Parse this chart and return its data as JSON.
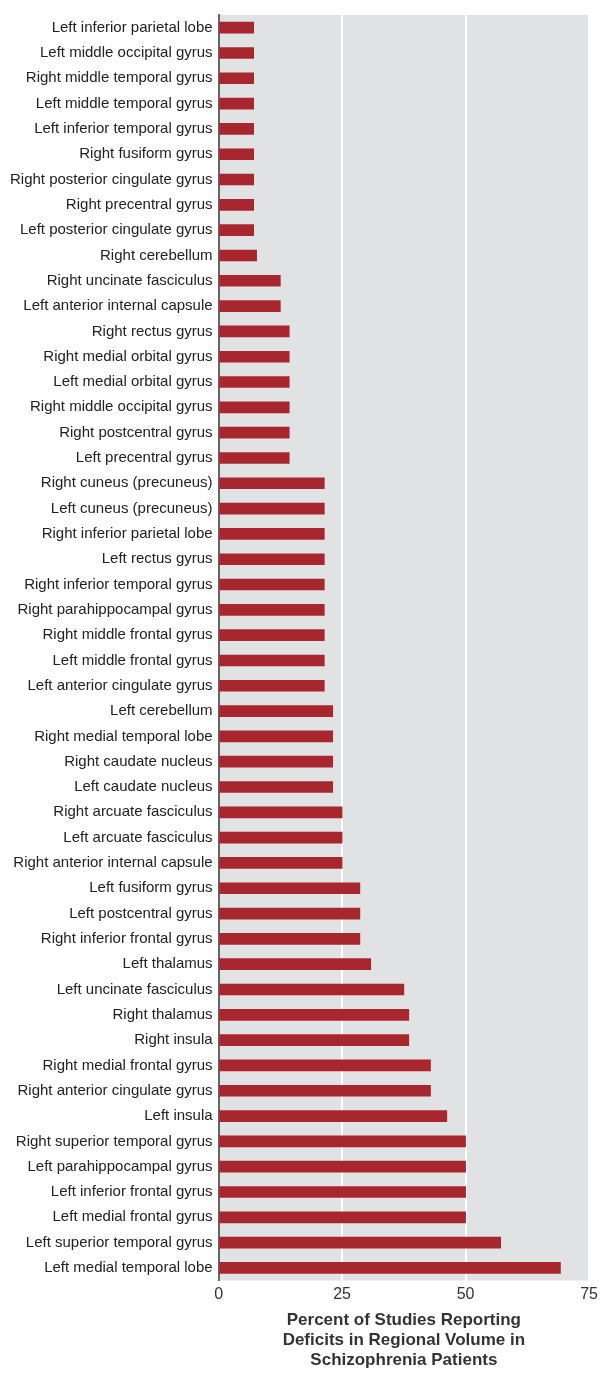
{
  "chart_data": {
    "type": "bar",
    "orientation": "horizontal",
    "xlabel": "Percent of Studies Reporting Deficits in Regional Volume in Schizophrenia Patients",
    "categories": [
      "Left inferior parietal lobe",
      "Left middle occipital gyrus",
      "Right middle temporal gyrus",
      "Left middle temporal gyrus",
      "Left inferior temporal gyrus",
      "Right fusiform gyrus",
      "Right posterior cingulate gyrus",
      "Right precentral gyrus",
      "Left posterior cingulate gyrus",
      "Right cerebellum",
      "Right uncinate fasciculus",
      "Left anterior internal capsule",
      "Right rectus gyrus",
      "Right medial orbital gyrus",
      "Left medial orbital gyrus",
      "Right middle occipital gyrus",
      "Right postcentral gyrus",
      "Left precentral gyrus",
      "Right cuneus (precuneus)",
      "Left cuneus (precuneus)",
      "Right inferior parietal lobe",
      "Left rectus gyrus",
      "Right inferior temporal gyrus",
      "Right parahippocampal gyrus",
      "Right middle frontal gyrus",
      "Left middle frontal gyrus",
      "Left anterior cingulate gyrus",
      "Left cerebellum",
      "Right medial temporal lobe",
      "Right caudate nucleus",
      "Left caudate nucleus",
      "Right arcuate fasciculus",
      "Left arcuate fasciculus",
      "Right anterior internal capsule",
      "Left fusiform gyrus",
      "Left postcentral gyrus",
      "Right inferior frontal gyrus",
      "Left thalamus",
      "Left uncinate fasciculus",
      "Right thalamus",
      "Right insula",
      "Right medial frontal gyrus",
      "Right anterior cingulate gyrus",
      "Left insula",
      "Right superior temporal gyrus",
      "Left parahippocampal gyrus",
      "Left inferior frontal gyrus",
      "Left medial frontal gyrus",
      "Left superior temporal gyrus",
      "Left medial temporal lobe"
    ],
    "values": [
      7.1,
      7.1,
      7.1,
      7.1,
      7.1,
      7.1,
      7.1,
      7.1,
      7.1,
      7.7,
      12.5,
      12.5,
      14.3,
      14.3,
      14.3,
      14.3,
      14.3,
      14.3,
      21.4,
      21.4,
      21.4,
      21.4,
      21.4,
      21.4,
      21.4,
      21.4,
      21.4,
      23.1,
      23.1,
      23.1,
      23.1,
      25,
      25,
      25,
      28.6,
      28.6,
      28.6,
      30.8,
      37.5,
      38.5,
      38.5,
      42.9,
      42.9,
      46.2,
      50,
      50,
      50,
      50,
      57.1,
      69.2
    ],
    "color": "#a8272f",
    "xlim": [
      0,
      75
    ],
    "xticks": [
      0,
      25,
      50,
      75
    ],
    "grid": "x"
  }
}
